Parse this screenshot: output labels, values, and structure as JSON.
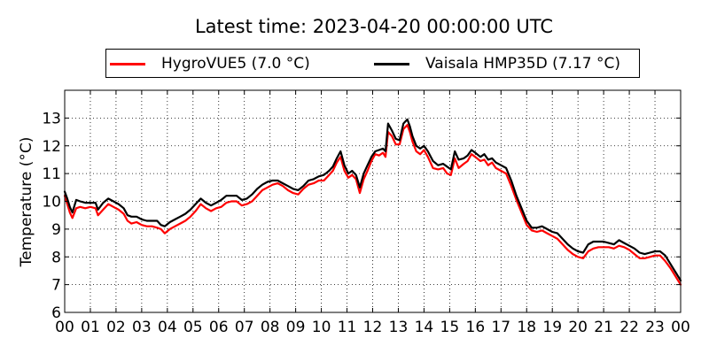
{
  "chart_data": {
    "type": "line",
    "title": "Latest time: 2023-04-20 00:00:00 UTC",
    "xlabel": "",
    "ylabel": "Temperature (°C)",
    "xlim": [
      0,
      24
    ],
    "ylim": [
      6,
      14
    ],
    "grid": true,
    "legend_position": "top",
    "x_ticks": [
      {
        "v": 0,
        "label": "00"
      },
      {
        "v": 1,
        "label": "01"
      },
      {
        "v": 2,
        "label": "02"
      },
      {
        "v": 3,
        "label": "03"
      },
      {
        "v": 4,
        "label": "04"
      },
      {
        "v": 5,
        "label": "05"
      },
      {
        "v": 6,
        "label": "06"
      },
      {
        "v": 7,
        "label": "07"
      },
      {
        "v": 8,
        "label": "08"
      },
      {
        "v": 9,
        "label": "09"
      },
      {
        "v": 10,
        "label": "10"
      },
      {
        "v": 11,
        "label": "11"
      },
      {
        "v": 12,
        "label": "12"
      },
      {
        "v": 13,
        "label": "13"
      },
      {
        "v": 14,
        "label": "14"
      },
      {
        "v": 15,
        "label": "15"
      },
      {
        "v": 16,
        "label": "16"
      },
      {
        "v": 17,
        "label": "17"
      },
      {
        "v": 18,
        "label": "18"
      },
      {
        "v": 19,
        "label": "19"
      },
      {
        "v": 20,
        "label": "20"
      },
      {
        "v": 21,
        "label": "21"
      },
      {
        "v": 22,
        "label": "22"
      },
      {
        "v": 23,
        "label": "23"
      },
      {
        "v": 24,
        "label": "00"
      }
    ],
    "y_ticks": [
      {
        "v": 6,
        "label": "6"
      },
      {
        "v": 7,
        "label": "7"
      },
      {
        "v": 8,
        "label": "8"
      },
      {
        "v": 9,
        "label": "9"
      },
      {
        "v": 10,
        "label": "10"
      },
      {
        "v": 11,
        "label": "11"
      },
      {
        "v": 12,
        "label": "12"
      },
      {
        "v": 13,
        "label": "13"
      }
    ],
    "series": [
      {
        "name": "HygroVUE5 (7.0 °C)",
        "color": "#ff0000",
        "x": [
          0.0,
          0.1,
          0.2,
          0.3,
          0.45,
          0.6,
          0.8,
          1.0,
          1.2,
          1.3,
          1.5,
          1.7,
          1.9,
          2.1,
          2.3,
          2.45,
          2.6,
          2.8,
          3.0,
          3.2,
          3.4,
          3.6,
          3.75,
          3.9,
          4.1,
          4.3,
          4.5,
          4.7,
          4.9,
          5.1,
          5.3,
          5.5,
          5.7,
          5.9,
          6.1,
          6.3,
          6.5,
          6.7,
          6.9,
          7.1,
          7.3,
          7.5,
          7.7,
          7.9,
          8.1,
          8.3,
          8.5,
          8.7,
          8.9,
          9.1,
          9.3,
          9.5,
          9.7,
          9.9,
          10.1,
          10.3,
          10.45,
          10.6,
          10.75,
          10.9,
          11.05,
          11.2,
          11.35,
          11.5,
          11.65,
          11.8,
          11.95,
          12.1,
          12.25,
          12.4,
          12.5,
          12.6,
          12.75,
          12.9,
          13.05,
          13.2,
          13.35,
          13.45,
          13.55,
          13.7,
          13.85,
          14.0,
          14.15,
          14.35,
          14.55,
          14.75,
          14.9,
          15.05,
          15.2,
          15.35,
          15.55,
          15.7,
          15.85,
          16.0,
          16.2,
          16.35,
          16.5,
          16.65,
          16.8,
          17.0,
          17.2,
          17.4,
          17.6,
          17.8,
          18.0,
          18.2,
          18.4,
          18.6,
          18.8,
          19.0,
          19.2,
          19.4,
          19.6,
          19.8,
          20.0,
          20.2,
          20.4,
          20.6,
          20.8,
          21.0,
          21.2,
          21.4,
          21.6,
          21.8,
          22.0,
          22.2,
          22.4,
          22.6,
          22.8,
          23.0,
          23.2,
          23.4,
          23.6,
          23.8,
          24.0
        ],
        "y": [
          10.2,
          9.9,
          9.6,
          9.4,
          9.75,
          9.8,
          9.75,
          9.8,
          9.75,
          9.5,
          9.7,
          9.9,
          9.8,
          9.7,
          9.55,
          9.3,
          9.2,
          9.25,
          9.15,
          9.1,
          9.1,
          9.05,
          9.0,
          8.85,
          9.0,
          9.1,
          9.2,
          9.3,
          9.45,
          9.65,
          9.9,
          9.75,
          9.65,
          9.75,
          9.8,
          9.95,
          10.0,
          10.0,
          9.85,
          9.9,
          10.0,
          10.2,
          10.4,
          10.5,
          10.6,
          10.65,
          10.55,
          10.4,
          10.3,
          10.25,
          10.45,
          10.6,
          10.65,
          10.75,
          10.75,
          10.95,
          11.1,
          11.4,
          11.6,
          11.1,
          10.85,
          10.95,
          10.8,
          10.3,
          10.8,
          11.1,
          11.45,
          11.7,
          11.65,
          11.75,
          11.6,
          12.5,
          12.35,
          12.05,
          12.05,
          12.6,
          12.75,
          12.5,
          12.15,
          11.8,
          11.7,
          11.85,
          11.6,
          11.2,
          11.15,
          11.2,
          11.0,
          10.95,
          11.55,
          11.2,
          11.35,
          11.45,
          11.7,
          11.6,
          11.45,
          11.5,
          11.3,
          11.4,
          11.2,
          11.1,
          11.0,
          10.55,
          10.05,
          9.6,
          9.15,
          8.95,
          8.9,
          8.95,
          8.85,
          8.75,
          8.65,
          8.45,
          8.25,
          8.1,
          8.0,
          7.95,
          8.2,
          8.3,
          8.35,
          8.35,
          8.35,
          8.3,
          8.4,
          8.35,
          8.25,
          8.1,
          7.95,
          7.95,
          8.0,
          8.05,
          8.05,
          7.85,
          7.6,
          7.3,
          7.0
        ]
      },
      {
        "name": "Vaisala HMP35D (7.17 °C)",
        "color": "#000000",
        "x": [
          0.0,
          0.1,
          0.2,
          0.3,
          0.45,
          0.6,
          0.8,
          1.0,
          1.2,
          1.3,
          1.5,
          1.7,
          1.9,
          2.1,
          2.3,
          2.45,
          2.6,
          2.8,
          3.0,
          3.2,
          3.4,
          3.6,
          3.75,
          3.9,
          4.1,
          4.3,
          4.5,
          4.7,
          4.9,
          5.1,
          5.3,
          5.5,
          5.7,
          5.9,
          6.1,
          6.3,
          6.5,
          6.7,
          6.9,
          7.1,
          7.3,
          7.5,
          7.7,
          7.9,
          8.1,
          8.3,
          8.5,
          8.7,
          8.9,
          9.1,
          9.3,
          9.5,
          9.7,
          9.9,
          10.1,
          10.3,
          10.45,
          10.6,
          10.75,
          10.9,
          11.05,
          11.2,
          11.35,
          11.5,
          11.65,
          11.8,
          11.95,
          12.1,
          12.25,
          12.4,
          12.5,
          12.6,
          12.75,
          12.9,
          13.05,
          13.2,
          13.35,
          13.45,
          13.55,
          13.7,
          13.85,
          14.0,
          14.15,
          14.35,
          14.55,
          14.75,
          14.9,
          15.05,
          15.2,
          15.35,
          15.55,
          15.7,
          15.85,
          16.0,
          16.2,
          16.35,
          16.5,
          16.65,
          16.8,
          17.0,
          17.2,
          17.4,
          17.6,
          17.8,
          18.0,
          18.2,
          18.4,
          18.6,
          18.8,
          19.0,
          19.2,
          19.4,
          19.6,
          19.8,
          20.0,
          20.2,
          20.4,
          20.6,
          20.8,
          21.0,
          21.2,
          21.4,
          21.6,
          21.8,
          22.0,
          22.2,
          22.4,
          22.6,
          22.8,
          23.0,
          23.2,
          23.4,
          23.6,
          23.8,
          24.0
        ],
        "y": [
          10.35,
          10.1,
          9.8,
          9.6,
          10.05,
          10.0,
          9.95,
          9.95,
          9.95,
          9.7,
          9.95,
          10.1,
          10.0,
          9.9,
          9.75,
          9.5,
          9.45,
          9.45,
          9.35,
          9.3,
          9.3,
          9.3,
          9.15,
          9.1,
          9.25,
          9.35,
          9.45,
          9.55,
          9.7,
          9.9,
          10.1,
          9.95,
          9.85,
          9.95,
          10.05,
          10.2,
          10.2,
          10.2,
          10.05,
          10.1,
          10.25,
          10.45,
          10.6,
          10.7,
          10.75,
          10.75,
          10.65,
          10.55,
          10.45,
          10.4,
          10.55,
          10.75,
          10.8,
          10.9,
          10.95,
          11.1,
          11.25,
          11.55,
          11.8,
          11.3,
          11.0,
          11.1,
          10.95,
          10.5,
          11.0,
          11.3,
          11.6,
          11.8,
          11.85,
          11.9,
          11.8,
          12.8,
          12.55,
          12.25,
          12.2,
          12.8,
          12.95,
          12.7,
          12.35,
          12.0,
          11.9,
          12.0,
          11.8,
          11.45,
          11.3,
          11.35,
          11.25,
          11.15,
          11.8,
          11.5,
          11.55,
          11.65,
          11.85,
          11.75,
          11.6,
          11.7,
          11.5,
          11.55,
          11.4,
          11.3,
          11.2,
          10.75,
          10.2,
          9.75,
          9.3,
          9.05,
          9.05,
          9.1,
          9.0,
          8.9,
          8.85,
          8.65,
          8.45,
          8.3,
          8.2,
          8.15,
          8.45,
          8.55,
          8.55,
          8.55,
          8.5,
          8.45,
          8.6,
          8.5,
          8.4,
          8.3,
          8.15,
          8.1,
          8.15,
          8.2,
          8.2,
          8.05,
          7.75,
          7.45,
          7.15
        ]
      }
    ]
  }
}
